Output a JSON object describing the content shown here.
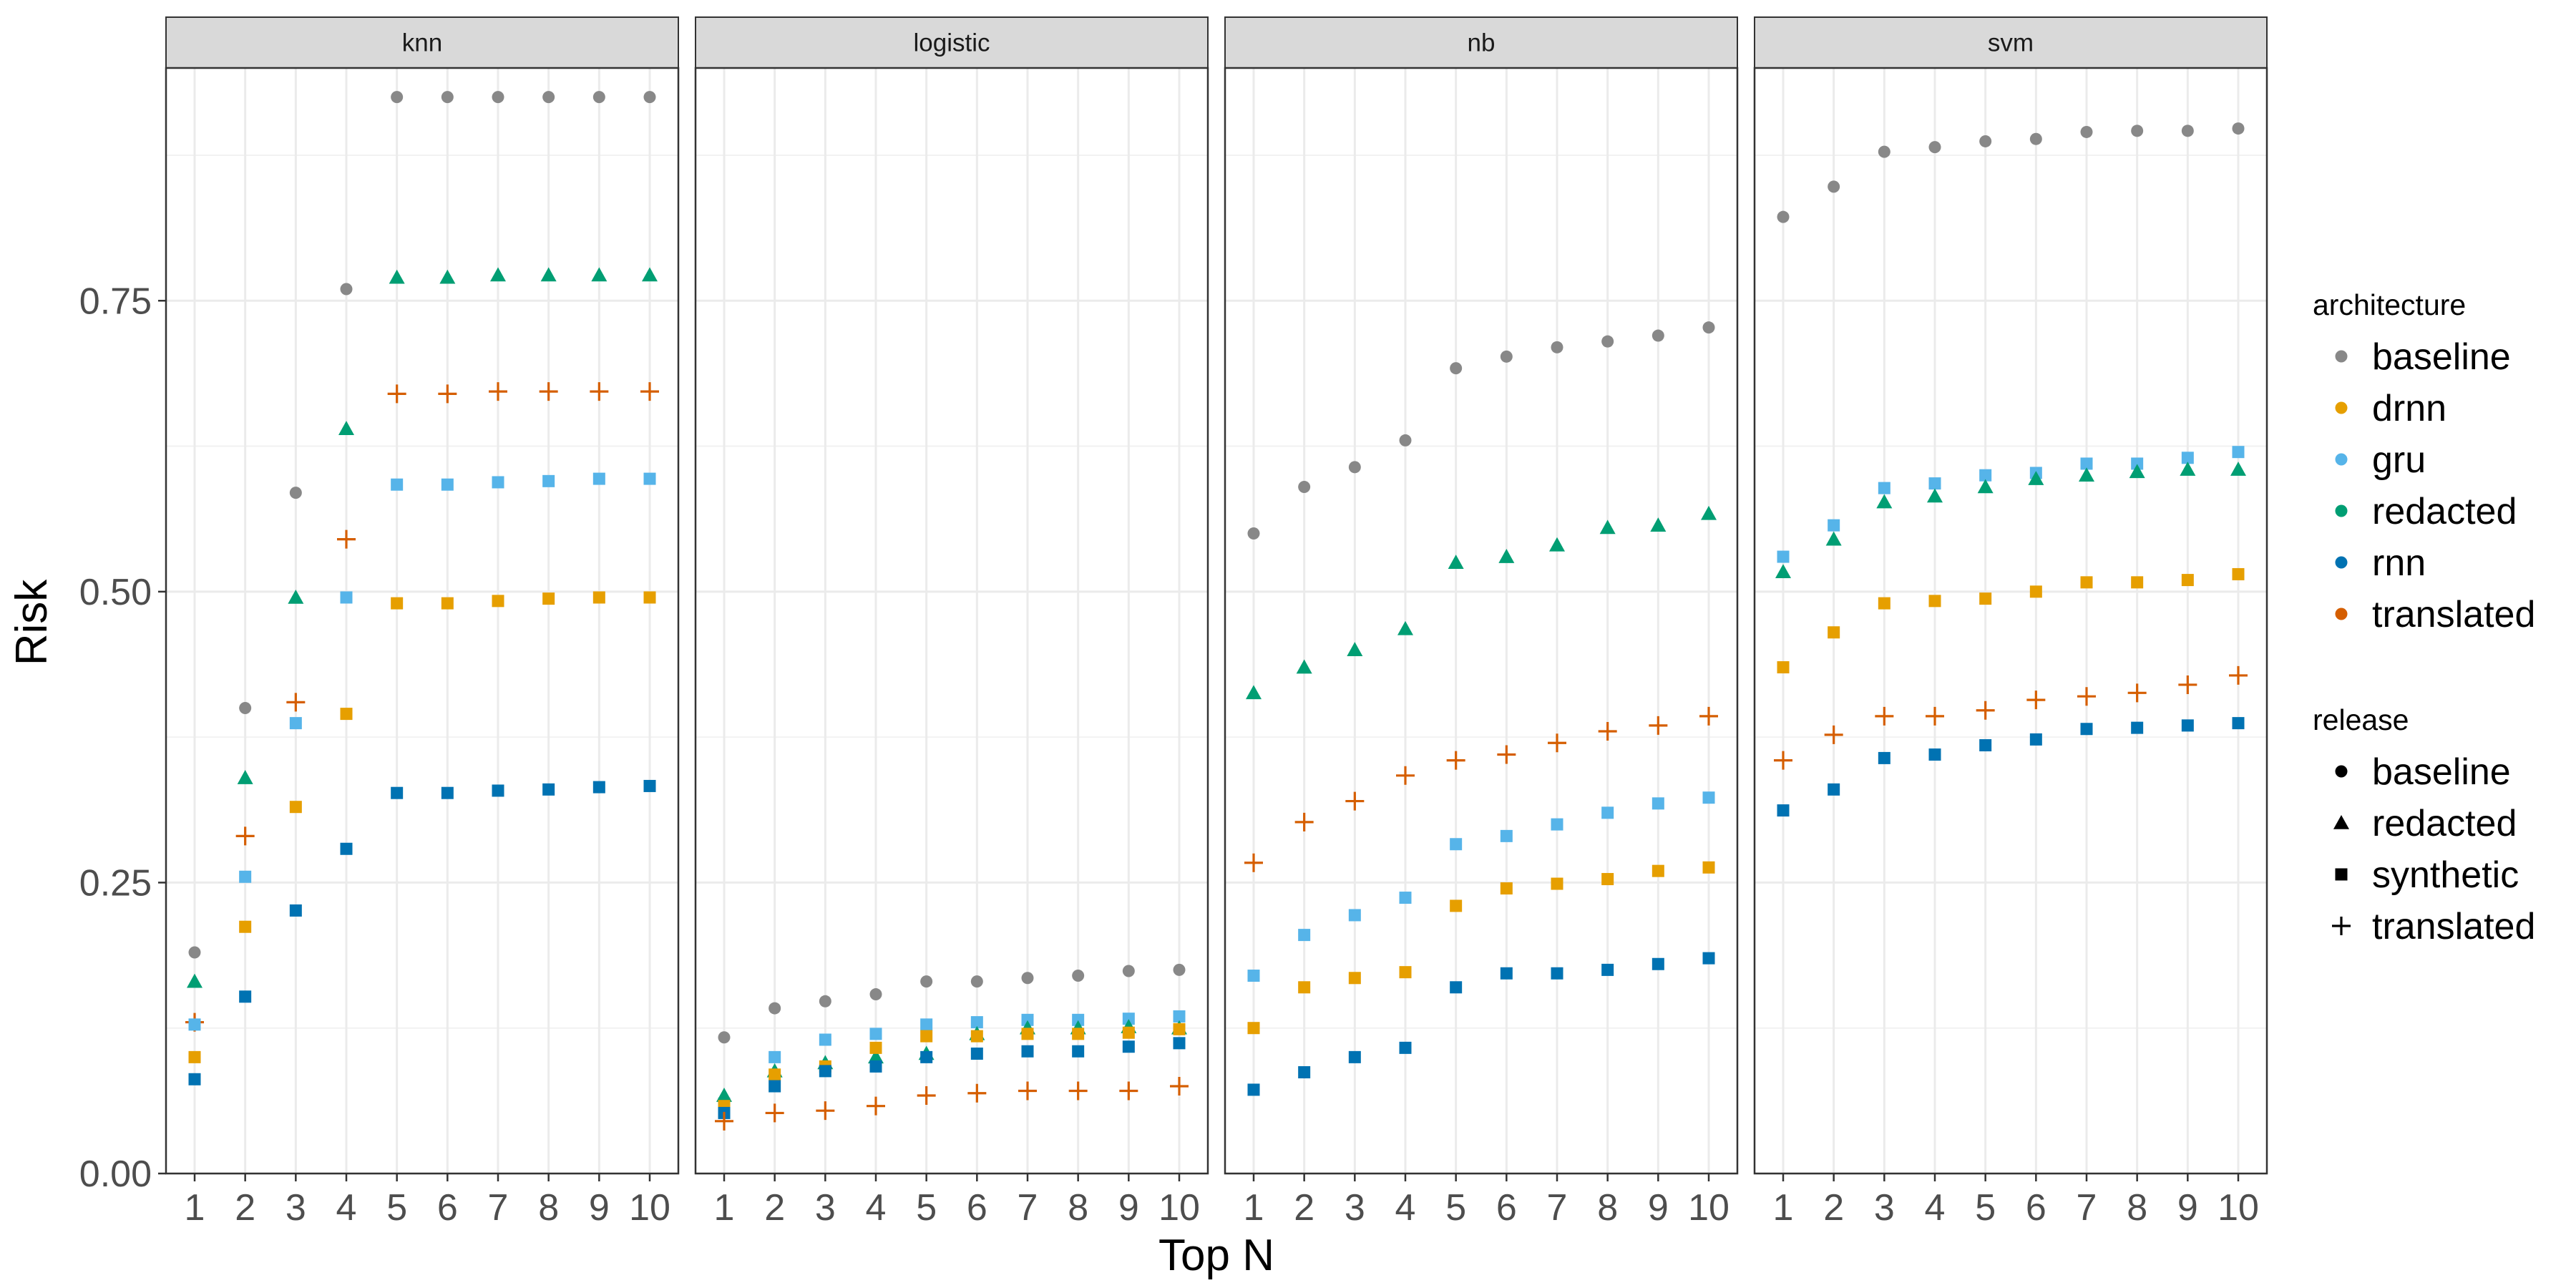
{
  "chart_data": {
    "type": "scatter",
    "xlabel": "Top N",
    "ylabel": "Risk",
    "x": [
      1,
      2,
      3,
      4,
      5,
      6,
      7,
      8,
      9,
      10
    ],
    "x_ticks": [
      "1",
      "2",
      "3",
      "4",
      "5",
      "6",
      "7",
      "8",
      "9",
      "10"
    ],
    "ylim": [
      0,
      0.95
    ],
    "y_ticks": [
      0,
      0.25,
      0.5,
      0.75
    ],
    "y_tick_labels": [
      "0.00",
      "0.25",
      "0.50",
      "0.75"
    ],
    "grid": true,
    "legend_position": "right",
    "legend": {
      "architecture": {
        "title": "architecture",
        "entries": [
          "baseline",
          "drnn",
          "gru",
          "redacted",
          "rnn",
          "translated"
        ],
        "colors": {
          "baseline": "#888888",
          "drnn": "#E69F00",
          "gru": "#56B4E9",
          "redacted": "#009E73",
          "rnn": "#0072B2",
          "translated": "#D55E00"
        }
      },
      "release": {
        "title": "release",
        "entries": [
          "baseline",
          "redacted",
          "synthetic",
          "translated"
        ],
        "shapes": {
          "baseline": "circle",
          "redacted": "triangle",
          "synthetic": "square",
          "translated": "plus"
        }
      }
    },
    "panels": [
      {
        "name": "knn",
        "series": [
          {
            "architecture": "baseline",
            "release": "baseline",
            "values": [
              0.19,
              0.4,
              0.585,
              0.76,
              0.925,
              0.925,
              0.925,
              0.925,
              0.925,
              0.925
            ]
          },
          {
            "architecture": "redacted",
            "release": "redacted",
            "values": [
              0.165,
              0.34,
              0.495,
              0.64,
              0.77,
              0.77,
              0.772,
              0.772,
              0.772,
              0.772
            ]
          },
          {
            "architecture": "translated",
            "release": "translated",
            "values": [
              0.13,
              0.29,
              0.405,
              0.545,
              0.67,
              0.67,
              0.672,
              0.672,
              0.672,
              0.672
            ]
          },
          {
            "architecture": "gru",
            "release": "synthetic",
            "values": [
              0.128,
              0.255,
              0.387,
              0.495,
              0.592,
              0.592,
              0.594,
              0.595,
              0.597,
              0.597
            ]
          },
          {
            "architecture": "drnn",
            "release": "synthetic",
            "values": [
              0.1,
              0.212,
              0.315,
              0.395,
              0.49,
              0.49,
              0.492,
              0.494,
              0.495,
              0.495
            ]
          },
          {
            "architecture": "rnn",
            "release": "synthetic",
            "values": [
              0.081,
              0.152,
              0.226,
              0.279,
              0.327,
              0.327,
              0.329,
              0.33,
              0.332,
              0.333
            ]
          }
        ]
      },
      {
        "name": "logistic",
        "series": [
          {
            "architecture": "baseline",
            "release": "baseline",
            "values": [
              0.117,
              0.142,
              0.148,
              0.154,
              0.165,
              0.165,
              0.168,
              0.17,
              0.174,
              0.175
            ]
          },
          {
            "architecture": "gru",
            "release": "synthetic",
            "values": [
              0.06,
              0.1,
              0.115,
              0.12,
              0.128,
              0.13,
              0.132,
              0.132,
              0.133,
              0.135
            ]
          },
          {
            "architecture": "redacted",
            "release": "redacted",
            "values": [
              0.067,
              0.088,
              0.095,
              0.1,
              0.103,
              0.12,
              0.125,
              0.125,
              0.126,
              0.125
            ]
          },
          {
            "architecture": "drnn",
            "release": "synthetic",
            "values": [
              0.058,
              0.085,
              0.092,
              0.108,
              0.118,
              0.118,
              0.12,
              0.12,
              0.121,
              0.124
            ]
          },
          {
            "architecture": "rnn",
            "release": "synthetic",
            "values": [
              0.052,
              0.075,
              0.088,
              0.092,
              0.1,
              0.103,
              0.105,
              0.105,
              0.109,
              0.112
            ]
          },
          {
            "architecture": "translated",
            "release": "translated",
            "values": [
              0.045,
              0.052,
              0.054,
              0.058,
              0.067,
              0.069,
              0.071,
              0.071,
              0.071,
              0.075
            ]
          }
        ]
      },
      {
        "name": "nb",
        "series": [
          {
            "architecture": "baseline",
            "release": "baseline",
            "values": [
              0.55,
              0.59,
              0.607,
              0.63,
              0.692,
              0.702,
              0.71,
              0.715,
              0.72,
              0.727
            ]
          },
          {
            "architecture": "redacted",
            "release": "redacted",
            "values": [
              0.413,
              0.435,
              0.45,
              0.468,
              0.525,
              0.53,
              0.54,
              0.555,
              0.557,
              0.567
            ]
          },
          {
            "architecture": "translated",
            "release": "translated",
            "values": [
              0.267,
              0.302,
              0.32,
              0.342,
              0.355,
              0.36,
              0.37,
              0.38,
              0.385,
              0.393
            ]
          },
          {
            "architecture": "gru",
            "release": "synthetic",
            "values": [
              0.17,
              0.205,
              0.222,
              0.237,
              0.283,
              0.29,
              0.3,
              0.31,
              0.318,
              0.323
            ]
          },
          {
            "architecture": "drnn",
            "release": "synthetic",
            "values": [
              0.125,
              0.16,
              0.168,
              0.173,
              0.23,
              0.245,
              0.249,
              0.253,
              0.26,
              0.263
            ]
          },
          {
            "architecture": "rnn",
            "release": "synthetic",
            "values": [
              0.072,
              0.087,
              0.1,
              0.108,
              0.16,
              0.172,
              0.172,
              0.175,
              0.18,
              0.185
            ]
          }
        ]
      },
      {
        "name": "svm",
        "series": [
          {
            "architecture": "baseline",
            "release": "baseline",
            "values": [
              0.822,
              0.848,
              0.878,
              0.882,
              0.887,
              0.889,
              0.895,
              0.896,
              0.896,
              0.898
            ]
          },
          {
            "architecture": "gru",
            "release": "synthetic",
            "values": [
              0.53,
              0.557,
              0.589,
              0.593,
              0.6,
              0.602,
              0.61,
              0.61,
              0.615,
              0.62
            ]
          },
          {
            "architecture": "redacted",
            "release": "redacted",
            "values": [
              0.517,
              0.545,
              0.577,
              0.582,
              0.59,
              0.597,
              0.6,
              0.603,
              0.605,
              0.605
            ]
          },
          {
            "architecture": "drnn",
            "release": "synthetic",
            "values": [
              0.435,
              0.465,
              0.49,
              0.492,
              0.494,
              0.5,
              0.508,
              0.508,
              0.51,
              0.515
            ]
          },
          {
            "architecture": "translated",
            "release": "translated",
            "values": [
              0.355,
              0.377,
              0.393,
              0.393,
              0.398,
              0.407,
              0.41,
              0.413,
              0.42,
              0.428
            ]
          },
          {
            "architecture": "rnn",
            "release": "synthetic",
            "values": [
              0.312,
              0.33,
              0.357,
              0.36,
              0.368,
              0.373,
              0.382,
              0.383,
              0.385,
              0.387
            ]
          }
        ]
      }
    ]
  }
}
